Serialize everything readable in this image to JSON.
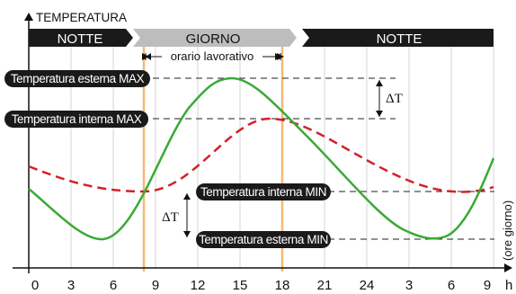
{
  "y_axis_label": "TEMPERATURA",
  "x_axis_unit": "h",
  "x_axis_caption": "(ore giorno)",
  "x_ticks": [
    "0",
    "3",
    "6",
    "9",
    "12",
    "15",
    "18",
    "21",
    "24",
    "3",
    "6",
    "9"
  ],
  "bands": {
    "night1": "NOTTE",
    "day": "GIORNO",
    "night2": "NOTTE"
  },
  "work_hours_label": "orario lavorativo",
  "labels": {
    "ext_max": "Temperatura esterna MAX",
    "int_max": "Temperatura interna MAX",
    "int_min": "Temperatura interna MIN",
    "ext_min": "Temperatura esterna MIN"
  },
  "delta_label": "ΔT",
  "colors": {
    "external_curve": "#3aaa35",
    "internal_curve": "#d42027",
    "work_hours_line": "#f5b878",
    "day_band": "#bdbdbd",
    "night_band": "#1a1a1a"
  }
}
